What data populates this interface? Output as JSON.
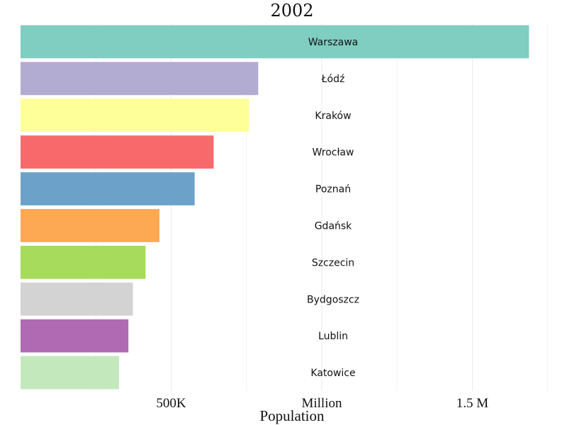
{
  "chart_data": {
    "type": "bar",
    "orientation": "horizontal",
    "title": "2002",
    "xlabel": "Population",
    "ylabel": "",
    "categories": [
      "Warszawa",
      "Łódź",
      "Kraków",
      "Wrocław",
      "Poznań",
      "Gdańsk",
      "Szczecin",
      "Bydgoszcz",
      "Lublin",
      "Katowice"
    ],
    "values": [
      1688000,
      789000,
      758000,
      641000,
      578000,
      461000,
      415000,
      373000,
      358000,
      327000
    ],
    "colors": [
      "#80cdc1",
      "#b2abd2",
      "#ffff99",
      "#f8696b",
      "#6ca2c9",
      "#fda852",
      "#a6db5b",
      "#d3d3d3",
      "#b06ab3",
      "#c3e8bc"
    ],
    "xlim": [
      0,
      1760000
    ],
    "xticks": [
      {
        "value": 500000,
        "label": "500K"
      },
      {
        "value": 1000000,
        "label": "Million"
      },
      {
        "value": 1500000,
        "label": "1.5 M"
      }
    ],
    "grid": true,
    "legend": "none"
  }
}
